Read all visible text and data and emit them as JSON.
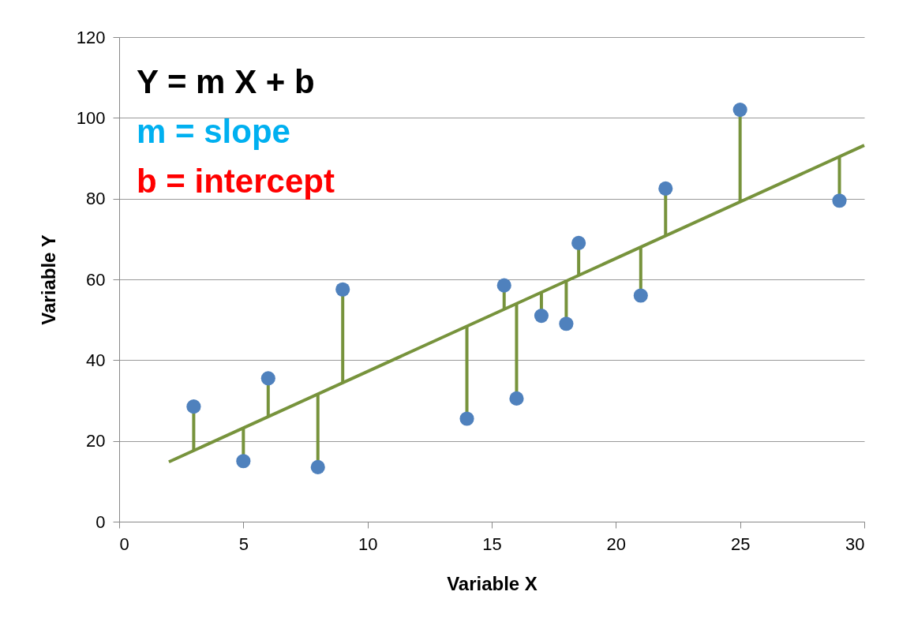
{
  "chart_data": {
    "type": "scatter",
    "xlabel": "Variable X",
    "ylabel": "Variable Y",
    "annotations": [
      "Y = m X + b",
      "m = slope",
      "b = intercept"
    ],
    "xlim": [
      0,
      30
    ],
    "xticks": [
      0,
      5,
      10,
      15,
      20,
      25,
      30
    ],
    "ylim": [
      0,
      120
    ],
    "yticks": [
      0,
      20,
      40,
      60,
      80,
      100,
      120
    ],
    "grid": "y",
    "series": [
      {
        "type": "scatter",
        "marker": "circle",
        "color": "#4f81bd",
        "x": [
          3,
          5,
          6,
          8,
          9,
          14,
          15.5,
          16,
          17,
          18,
          18.5,
          21,
          22,
          25,
          29
        ],
        "values": [
          28.5,
          15,
          35.5,
          13.5,
          57.5,
          25.5,
          58.5,
          30.5,
          51,
          49,
          69,
          56,
          82.5,
          102,
          79.5
        ],
        "errors": [
          [
            17.6,
            28.5
          ],
          [
            15,
            23.2
          ],
          [
            26,
            35.5
          ],
          [
            13.5,
            31.6
          ],
          [
            34.4,
            57.5
          ],
          [
            25.5,
            48.4
          ],
          [
            52.6,
            58.5
          ],
          [
            30.5,
            54
          ],
          [
            51,
            56.8
          ],
          [
            49,
            59.6
          ],
          [
            61,
            69
          ],
          [
            56,
            68
          ],
          [
            70.8,
            82.5
          ],
          [
            79.2,
            102
          ],
          [
            79.5,
            90.4
          ]
        ]
      },
      {
        "type": "line",
        "marker": "none",
        "color": "#77933c",
        "x": [
          2,
          30
        ],
        "values": [
          14.8,
          93.2
        ]
      }
    ]
  }
}
